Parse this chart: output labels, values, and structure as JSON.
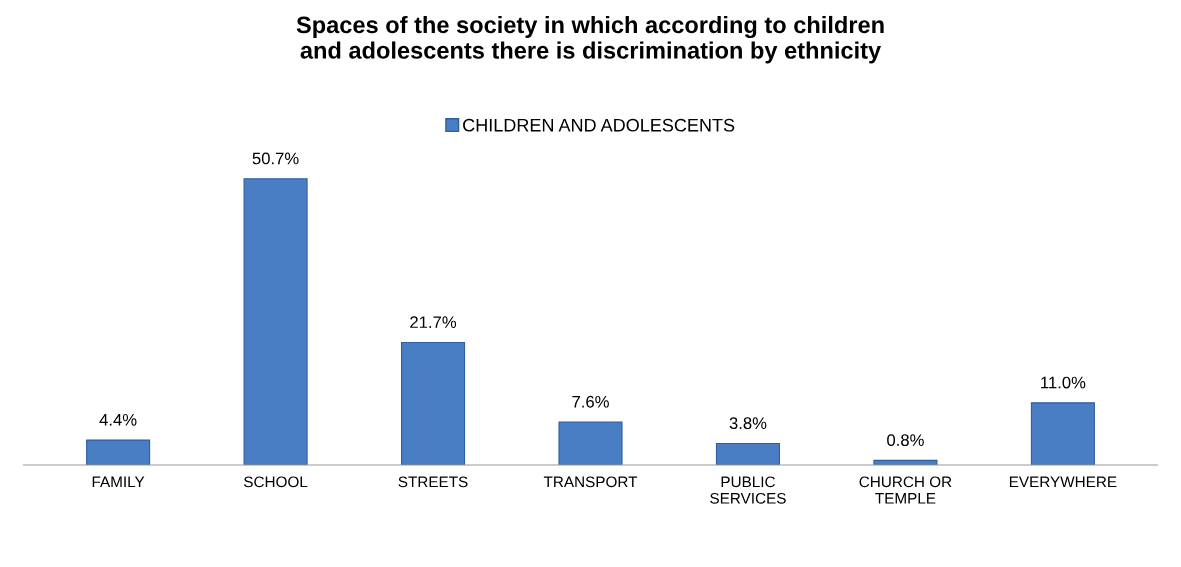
{
  "chart_data": {
    "type": "bar",
    "title": "Spaces of the society in which according to children\nand adolescents there is discrimination by ethnicity",
    "categories": [
      "FAMILY",
      "SCHOOL",
      "STREETS",
      "TRANSPORT",
      "PUBLIC\nSERVICES",
      "CHURCH OR\nTEMPLE",
      "EVERYWHERE"
    ],
    "series": [
      {
        "name": "CHILDREN AND ADOLESCENTS",
        "color": "#4a7ec4",
        "values": [
          4.4,
          50.7,
          21.7,
          7.6,
          3.8,
          0.8,
          11.0
        ],
        "value_labels": [
          "4.4%",
          "50.7%",
          "21.7%",
          "7.6%",
          "3.8%",
          "0.8%",
          "11.0%"
        ]
      }
    ],
    "legend": "top",
    "grid": false
  }
}
